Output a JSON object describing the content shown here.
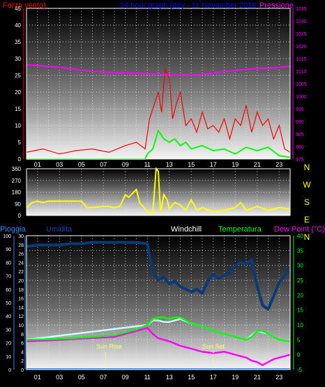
{
  "chart_data": [
    {
      "type": "line",
      "title": "24 hour graph (day - 11 November 2018",
      "left_label": "Forza vento)",
      "right_label": "Pressione",
      "left_ticks": [
        "0",
        "5",
        "10",
        "15",
        "20",
        "25",
        "30",
        "35",
        "40",
        "45"
      ],
      "right_ticks": [
        "975",
        "980",
        "985",
        "990",
        "995",
        "1000",
        "1005",
        "1010",
        "1015",
        "1020",
        "1025",
        "1030",
        "1035"
      ],
      "x_ticks": [
        "01",
        "03",
        "05",
        "07",
        "09",
        "11",
        "13",
        "15",
        "17",
        "19",
        "21",
        "23"
      ],
      "xlim": [
        0,
        24
      ],
      "ylim_left": [
        0,
        45
      ],
      "ylim_right": [
        975,
        1035
      ],
      "grid": true,
      "series": {
        "pressure": {
          "x": [
            0,
            1,
            2,
            3,
            4,
            5,
            6,
            7,
            8,
            9,
            10,
            11,
            12,
            13,
            14,
            15,
            16,
            17,
            18,
            19,
            20,
            21,
            22,
            23,
            24
          ],
          "y": [
            1012.5,
            1012.2,
            1011.8,
            1011.5,
            1011,
            1010.4,
            1009.9,
            1009.6,
            1009.4,
            1009.3,
            1009.1,
            1008.9,
            1008.8,
            1008.6,
            1008.5,
            1008.5,
            1008.7,
            1009.2,
            1009.8,
            1010.3,
            1010.7,
            1011,
            1011.2,
            1011.5,
            1011.9
          ]
        },
        "wind_avg": {
          "x": [
            0,
            10.8,
            11,
            11.5,
            12,
            12.5,
            13,
            13.5,
            14,
            14.5,
            15,
            16,
            17,
            18,
            19,
            20,
            21,
            22,
            23,
            24
          ],
          "y": [
            0,
            0,
            1.5,
            3,
            8.5,
            6,
            5,
            6,
            4,
            5,
            3,
            4,
            2.5,
            3,
            1.5,
            3.5,
            2.5,
            3.5,
            1,
            0.5
          ]
        },
        "wind_gust": {
          "x": [
            0,
            1.5,
            3,
            4.5,
            6,
            7.5,
            9,
            10,
            10.8,
            11.2,
            11.6,
            12,
            12.3,
            12.6,
            13,
            13.3,
            13.6,
            14,
            14.5,
            15,
            15.5,
            16,
            16.5,
            17,
            17.5,
            18,
            18.5,
            19,
            19.5,
            20,
            20.5,
            21,
            21.5,
            22,
            22.5,
            23,
            23.5,
            24
          ],
          "y": [
            2,
            3,
            1.5,
            2.5,
            3,
            2,
            4,
            5,
            3,
            12,
            16,
            20,
            14,
            27,
            24,
            12,
            16,
            20,
            10,
            12,
            8,
            14,
            9,
            10,
            8,
            12,
            6,
            12,
            10,
            16,
            8,
            14,
            10,
            12,
            6,
            10,
            3,
            2
          ]
        }
      }
    },
    {
      "type": "line",
      "title": "",
      "left_ticks": [
        "0",
        "90",
        "180",
        "270",
        "360"
      ],
      "right_labels": [
        "N",
        "W",
        "S",
        "E",
        "N"
      ],
      "ylim": [
        0,
        360
      ],
      "series": {
        "wind_direction": {
          "x": [
            0,
            0.5,
            1,
            1.5,
            2,
            3,
            4,
            5,
            5.5,
            6,
            7,
            7.5,
            8,
            8.5,
            9,
            9.3,
            10,
            10.3,
            10.6,
            11,
            11.5,
            11.8,
            12,
            12.2,
            12.5,
            12.8,
            13,
            13.5,
            14,
            14.5,
            15,
            15.5,
            16,
            17,
            18,
            19,
            19.5,
            20,
            21,
            22,
            23,
            24
          ],
          "y": [
            60,
            100,
            110,
            100,
            110,
            110,
            110,
            110,
            60,
            60,
            70,
            70,
            60,
            70,
            160,
            140,
            200,
            100,
            70,
            30,
            20,
            360,
            340,
            20,
            160,
            120,
            50,
            100,
            80,
            40,
            120,
            40,
            60,
            30,
            40,
            60,
            100,
            40,
            70,
            40,
            60,
            50
          ]
        }
      }
    },
    {
      "type": "line",
      "title": "",
      "labels": {
        "rain": "Pioggia",
        "humidity": "Umidita",
        "windchill": "Windchill",
        "temperature": "Temperatura",
        "dewpoint": "Dew Point (°C)"
      },
      "left_ticks_rain": [
        "0",
        "2",
        "4",
        "6",
        "8",
        "10",
        "12",
        "14",
        "16",
        "18",
        "20",
        "22",
        "24",
        "26",
        "28",
        "30"
      ],
      "left_ticks_hum": [
        "0",
        "10",
        "20",
        "30",
        "40",
        "50",
        "60",
        "70",
        "80",
        "90",
        "100"
      ],
      "right_ticks": [
        "-5",
        "0",
        "5",
        "10",
        "15",
        "20",
        "25",
        "30",
        "35",
        "40"
      ],
      "x_ticks": [
        "01",
        "03",
        "05",
        "07",
        "09",
        "11",
        "13",
        "15",
        "17",
        "19",
        "21",
        "23"
      ],
      "annotations": {
        "sunrise": "Sun Rise",
        "sunset": "Sun Set"
      },
      "sunrise_hour": 7.2,
      "sunset_hour": 17,
      "ylim_rain": [
        0,
        30
      ],
      "ylim_hum": [
        0,
        100
      ],
      "ylim_temp": [
        -5,
        40
      ],
      "grid": true,
      "series": {
        "humidity": {
          "x": [
            0,
            1,
            2,
            3,
            4,
            5,
            6,
            7,
            8,
            9,
            10,
            11,
            11.3,
            11.7,
            12,
            12.5,
            13,
            13.5,
            14,
            14.5,
            15,
            15.5,
            16,
            16.5,
            17,
            17.5,
            18,
            18.5,
            19,
            19.5,
            20,
            20.5,
            21,
            21.5,
            22,
            22.5,
            23,
            23.5,
            24
          ],
          "y": [
            92,
            93,
            93,
            93,
            94,
            94,
            95,
            95,
            95,
            95,
            95,
            94,
            80,
            70,
            67,
            69,
            64,
            66,
            62,
            60,
            58,
            60,
            57,
            66,
            71,
            68,
            70,
            72,
            78,
            80,
            79,
            82,
            62,
            48,
            45,
            55,
            65,
            70,
            75
          ]
        },
        "temperature": {
          "x": [
            0,
            2,
            4,
            6,
            8,
            9,
            10,
            11,
            11.5,
            12,
            12.5,
            13,
            13.5,
            14,
            15,
            16,
            17,
            18,
            19,
            19.5,
            20,
            20.5,
            21,
            21.5,
            22,
            23,
            24
          ],
          "y": [
            5,
            5.2,
            5.5,
            6,
            6.5,
            7.5,
            8.5,
            10,
            12,
            12.5,
            12.5,
            12,
            12.5,
            12.5,
            10.5,
            9.5,
            8,
            7,
            6,
            5.5,
            5,
            6,
            8,
            8,
            7,
            5,
            4.5
          ]
        },
        "windchill": {
          "x": [
            0,
            11,
            11.5,
            12,
            12.5,
            13,
            13.5,
            14,
            15,
            16,
            17,
            18,
            19,
            20,
            21,
            22,
            23,
            24
          ],
          "y": [
            5,
            10,
            11.5,
            11.5,
            11,
            11,
            11.5,
            12,
            10.5,
            9.5,
            8,
            7,
            6,
            5,
            8,
            7,
            5,
            4.5
          ]
        },
        "dewpoint": {
          "x": [
            0,
            2,
            4,
            6,
            8,
            9,
            10,
            11,
            11.5,
            12,
            13,
            14,
            15,
            16,
            17,
            18,
            19,
            20,
            20.5,
            21,
            21.5,
            22,
            22.5,
            23,
            23.5,
            24
          ],
          "y": [
            4.5,
            4.8,
            5.2,
            5.6,
            6,
            7,
            8,
            9,
            7,
            5.5,
            4.5,
            3,
            2,
            1,
            0.5,
            1,
            0,
            -1,
            -2,
            -2.5,
            -3.5,
            -2.5,
            -1.5,
            -1,
            -0.5,
            0
          ]
        },
        "rain": {
          "x": [
            0,
            24
          ],
          "y": [
            0,
            0
          ]
        }
      }
    }
  ],
  "colors": {
    "wind_gust": "#ff0000",
    "wind_avg": "#00ff00",
    "pressure": "#ff00ff",
    "direction": "#ffff00",
    "humidity": "#0a3a78",
    "temperature": "#00ff00",
    "dewpoint": "#ff00ff",
    "windchill": "#c8ffff",
    "rain": "#2a8cff",
    "title": "#0000ff"
  }
}
